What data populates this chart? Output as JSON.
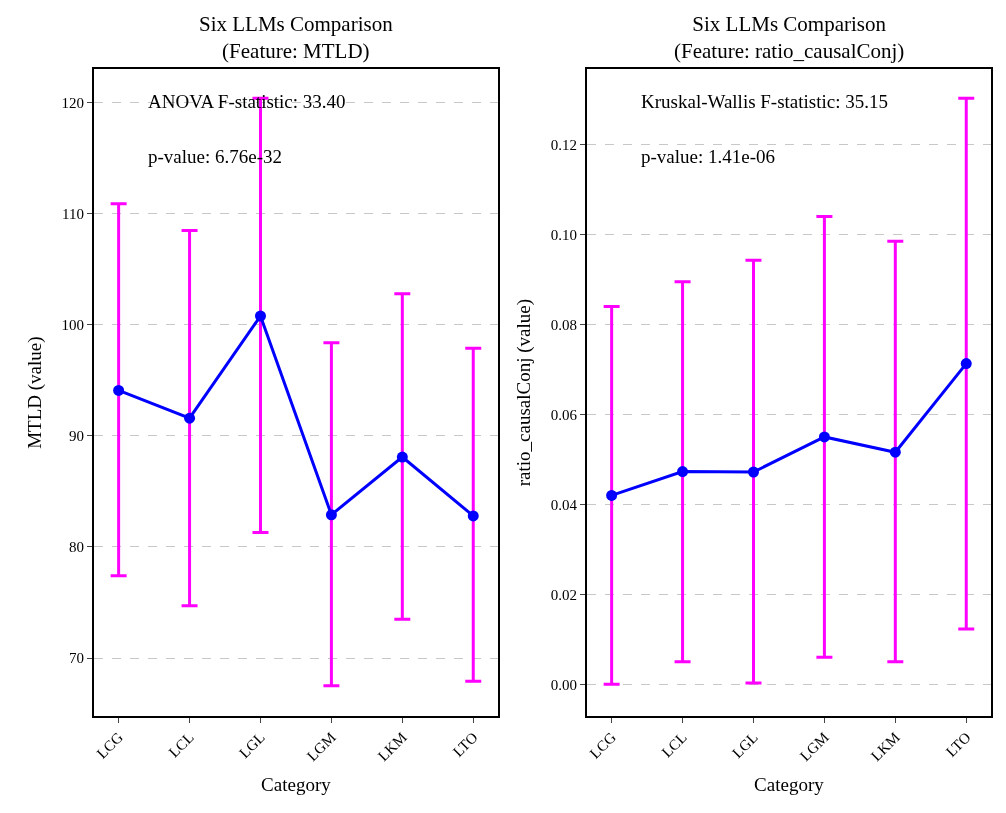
{
  "chart_data": [
    {
      "type": "line",
      "title": "Six LLMs Comparison\n(Feature: MTLD)",
      "xlabel": "Category",
      "ylabel": "MTLD (value)",
      "categories": [
        "LCG",
        "LCL",
        "LGL",
        "LGM",
        "LKM",
        "LTO"
      ],
      "series": [
        {
          "color": "#0000ff",
          "values": [
            94.1,
            91.6,
            100.8,
            82.9,
            88.1,
            82.8
          ],
          "errors": [
            [
              77.4,
              110.9
            ],
            [
              74.7,
              108.5
            ],
            [
              81.3,
              120.4
            ],
            [
              67.5,
              98.4
            ],
            [
              73.5,
              102.8
            ],
            [
              67.9,
              97.9
            ]
          ]
        }
      ],
      "ylim": [
        64.8,
        123
      ],
      "yticks": [
        70,
        80,
        90,
        100,
        110,
        120
      ],
      "grid": "y",
      "marker": "circle",
      "line_style": "solid",
      "annotations": [
        "ANOVA F-statistic: 33.40",
        "p-value: 6.76e-32"
      ]
    },
    {
      "type": "line",
      "title": "Six LLMs Comparison\n(Feature: ratio_causalConj)",
      "xlabel": "Category",
      "ylabel": "ratio_causalConj (value)",
      "categories": [
        "LCG",
        "LCL",
        "LGL",
        "LGM",
        "LKM",
        "LTO"
      ],
      "series": [
        {
          "color": "#0000ff",
          "values": [
            0.042,
            0.0473,
            0.0472,
            0.055,
            0.0516,
            0.0713
          ],
          "errors": [
            [
              0.0,
              0.084
            ],
            [
              0.005,
              0.0895
            ],
            [
              0.0003,
              0.0943
            ],
            [
              0.006,
              0.104
            ],
            [
              0.005,
              0.0985
            ],
            [
              0.0123,
              0.1303
            ]
          ]
        }
      ],
      "ylim": [
        -0.007,
        0.1367
      ],
      "yticks": [
        {
          "value": 0,
          "label": "0.00"
        },
        {
          "value": 0.02,
          "label": "0.02"
        },
        {
          "value": 0.04,
          "label": "0.04"
        },
        {
          "value": 0.06,
          "label": "0.06"
        },
        {
          "value": 0.08,
          "label": "0.08"
        },
        {
          "value": 0.1,
          "label": "0.10"
        },
        {
          "value": 0.12,
          "label": "0.12"
        }
      ],
      "grid": "y",
      "marker": "circle",
      "line_style": "solid",
      "annotations": [
        "Kruskal-Wallis F-statistic: 35.15",
        "p-value: 1.41e-06"
      ]
    }
  ]
}
